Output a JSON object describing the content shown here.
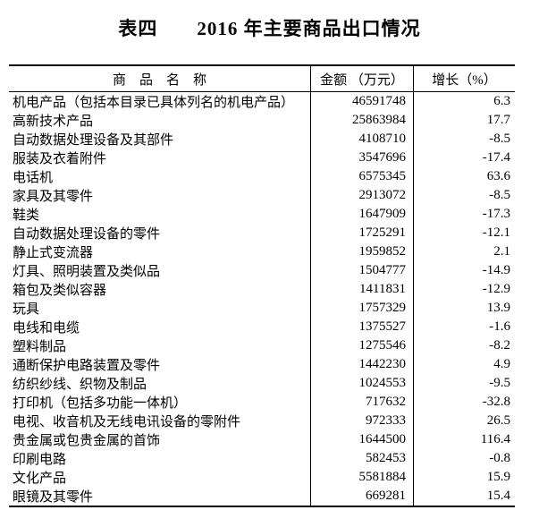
{
  "page": {
    "title": "表四　　2016 年主要商品出口情况"
  },
  "table": {
    "columns": [
      {
        "label": "商　品　名　称"
      },
      {
        "label": "金额 （万元）"
      },
      {
        "label": "增长（%）"
      }
    ],
    "rows": [
      {
        "name": "机电产品（包括本目录已具体列名的机电产品）",
        "amount": "46591748",
        "growth": "6.3"
      },
      {
        "name": "高新技术产品",
        "amount": "25863984",
        "growth": "17.7"
      },
      {
        "name": "自动数据处理设备及其部件",
        "amount": "4108710",
        "growth": "-8.5"
      },
      {
        "name": "服装及衣着附件",
        "amount": "3547696",
        "growth": "-17.4"
      },
      {
        "name": "电话机",
        "amount": "6575345",
        "growth": "63.6"
      },
      {
        "name": "家具及其零件",
        "amount": "2913072",
        "growth": "-8.5"
      },
      {
        "name": "鞋类",
        "amount": "1647909",
        "growth": "-17.3"
      },
      {
        "name": "自动数据处理设备的零件",
        "amount": "1725291",
        "growth": "-12.1"
      },
      {
        "name": "静止式变流器",
        "amount": "1959852",
        "growth": "2.1"
      },
      {
        "name": "灯具、照明装置及类似品",
        "amount": "1504777",
        "growth": "-14.9"
      },
      {
        "name": "箱包及类似容器",
        "amount": "1411831",
        "growth": "-12.9"
      },
      {
        "name": "玩具",
        "amount": "1757329",
        "growth": "13.9"
      },
      {
        "name": "电线和电缆",
        "amount": "1375527",
        "growth": "-1.6"
      },
      {
        "name": "塑料制品",
        "amount": "1275546",
        "growth": "-8.2"
      },
      {
        "name": "通断保护电路装置及零件",
        "amount": "1442230",
        "growth": "4.9"
      },
      {
        "name": "纺织纱线、织物及制品",
        "amount": "1024553",
        "growth": "-9.5"
      },
      {
        "name": "打印机（包括多功能一体机）",
        "amount": "717632",
        "growth": "-32.8"
      },
      {
        "name": "电视、收音机及无线电讯设备的零附件",
        "amount": "972333",
        "growth": "26.5"
      },
      {
        "name": "贵金属或包贵金属的首饰",
        "amount": "1644500",
        "growth": "116.4"
      },
      {
        "name": "印刷电路",
        "amount": "582453",
        "growth": "-0.8"
      },
      {
        "name": "文化产品",
        "amount": "5581884",
        "growth": "15.9"
      },
      {
        "name": "眼镜及其零件",
        "amount": "669281",
        "growth": "15.4"
      }
    ]
  }
}
